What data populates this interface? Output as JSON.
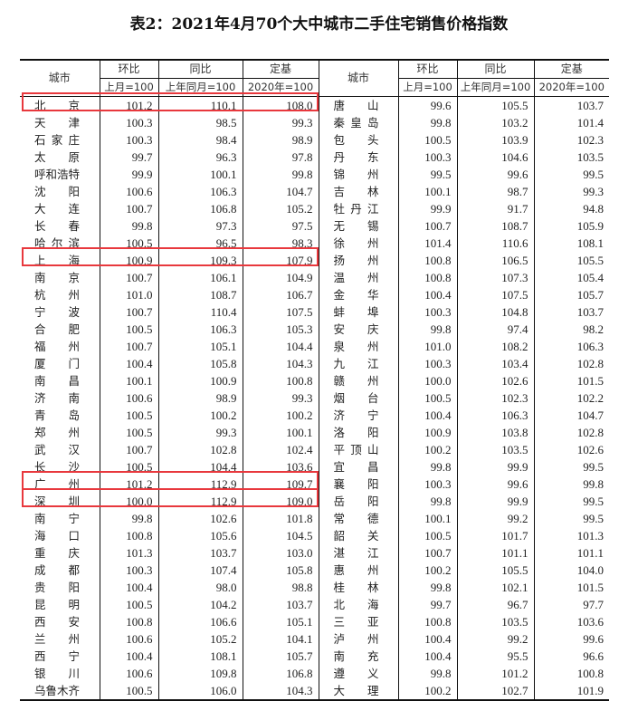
{
  "title": "表2：2021年4月70个大中城市二手住宅销售价格指数",
  "headers": {
    "city": "城市",
    "mom": "环比",
    "yoy": "同比",
    "base": "定基",
    "mom_sub": "上月=100",
    "yoy_sub": "上年同月=100",
    "base_sub": "2020年=100"
  },
  "highlight_color": "#e8383d",
  "left": [
    {
      "city": "北京",
      "mom": "101.2",
      "yoy": "110.1",
      "base": "108.0",
      "highlight": true
    },
    {
      "city": "天津",
      "mom": "100.3",
      "yoy": "98.5",
      "base": "99.3"
    },
    {
      "city": "石家庄",
      "mom": "100.3",
      "yoy": "98.4",
      "base": "98.9"
    },
    {
      "city": "太原",
      "mom": "99.7",
      "yoy": "96.3",
      "base": "97.8"
    },
    {
      "city": "呼和浩特",
      "mom": "99.9",
      "yoy": "100.1",
      "base": "99.8"
    },
    {
      "city": "沈阳",
      "mom": "100.6",
      "yoy": "106.3",
      "base": "104.7"
    },
    {
      "city": "大连",
      "mom": "100.7",
      "yoy": "106.8",
      "base": "105.2"
    },
    {
      "city": "长春",
      "mom": "99.8",
      "yoy": "97.3",
      "base": "97.5"
    },
    {
      "city": "哈尔滨",
      "mom": "100.5",
      "yoy": "96.5",
      "base": "98.3"
    },
    {
      "city": "上海",
      "mom": "100.9",
      "yoy": "109.3",
      "base": "107.9",
      "highlight": true
    },
    {
      "city": "南京",
      "mom": "100.7",
      "yoy": "106.1",
      "base": "104.9"
    },
    {
      "city": "杭州",
      "mom": "101.0",
      "yoy": "108.7",
      "base": "106.7"
    },
    {
      "city": "宁波",
      "mom": "100.7",
      "yoy": "110.4",
      "base": "107.5"
    },
    {
      "city": "合肥",
      "mom": "100.5",
      "yoy": "106.3",
      "base": "105.3"
    },
    {
      "city": "福州",
      "mom": "100.7",
      "yoy": "105.1",
      "base": "104.4"
    },
    {
      "city": "厦门",
      "mom": "100.4",
      "yoy": "105.8",
      "base": "104.3"
    },
    {
      "city": "南昌",
      "mom": "100.1",
      "yoy": "100.9",
      "base": "100.8"
    },
    {
      "city": "济南",
      "mom": "100.6",
      "yoy": "98.9",
      "base": "99.3"
    },
    {
      "city": "青岛",
      "mom": "100.5",
      "yoy": "100.2",
      "base": "100.2"
    },
    {
      "city": "郑州",
      "mom": "100.5",
      "yoy": "99.3",
      "base": "100.1"
    },
    {
      "city": "武汉",
      "mom": "100.7",
      "yoy": "102.8",
      "base": "102.4"
    },
    {
      "city": "长沙",
      "mom": "100.5",
      "yoy": "104.4",
      "base": "103.6"
    },
    {
      "city": "广州",
      "mom": "101.2",
      "yoy": "112.9",
      "base": "109.7",
      "highlight": true
    },
    {
      "city": "深圳",
      "mom": "100.0",
      "yoy": "112.9",
      "base": "109.0",
      "highlight": true
    },
    {
      "city": "南宁",
      "mom": "99.8",
      "yoy": "102.6",
      "base": "101.8"
    },
    {
      "city": "海口",
      "mom": "100.8",
      "yoy": "105.6",
      "base": "104.5"
    },
    {
      "city": "重庆",
      "mom": "101.3",
      "yoy": "103.7",
      "base": "103.0"
    },
    {
      "city": "成都",
      "mom": "100.3",
      "yoy": "107.4",
      "base": "105.8"
    },
    {
      "city": "贵阳",
      "mom": "100.4",
      "yoy": "98.0",
      "base": "98.8"
    },
    {
      "city": "昆明",
      "mom": "100.5",
      "yoy": "104.2",
      "base": "103.7"
    },
    {
      "city": "西安",
      "mom": "100.8",
      "yoy": "106.6",
      "base": "105.1"
    },
    {
      "city": "兰州",
      "mom": "100.6",
      "yoy": "105.2",
      "base": "104.1"
    },
    {
      "city": "西宁",
      "mom": "100.4",
      "yoy": "108.1",
      "base": "105.7"
    },
    {
      "city": "银川",
      "mom": "100.6",
      "yoy": "109.8",
      "base": "106.8"
    },
    {
      "city": "乌鲁木齐",
      "mom": "100.5",
      "yoy": "106.0",
      "base": "104.3"
    }
  ],
  "right": [
    {
      "city": "唐山",
      "mom": "99.6",
      "yoy": "105.5",
      "base": "103.7"
    },
    {
      "city": "秦皇岛",
      "mom": "99.8",
      "yoy": "103.2",
      "base": "101.4"
    },
    {
      "city": "包头",
      "mom": "100.5",
      "yoy": "103.9",
      "base": "102.3"
    },
    {
      "city": "丹东",
      "mom": "100.3",
      "yoy": "104.6",
      "base": "103.5"
    },
    {
      "city": "锦州",
      "mom": "99.5",
      "yoy": "99.6",
      "base": "99.5"
    },
    {
      "city": "吉林",
      "mom": "100.1",
      "yoy": "98.7",
      "base": "99.3"
    },
    {
      "city": "牡丹江",
      "mom": "99.9",
      "yoy": "91.7",
      "base": "94.8"
    },
    {
      "city": "无锡",
      "mom": "100.7",
      "yoy": "108.7",
      "base": "105.9"
    },
    {
      "city": "徐州",
      "mom": "101.4",
      "yoy": "110.6",
      "base": "108.1"
    },
    {
      "city": "扬州",
      "mom": "100.8",
      "yoy": "106.5",
      "base": "105.5"
    },
    {
      "city": "温州",
      "mom": "100.8",
      "yoy": "107.3",
      "base": "105.4"
    },
    {
      "city": "金华",
      "mom": "100.4",
      "yoy": "107.5",
      "base": "105.7"
    },
    {
      "city": "蚌埠",
      "mom": "100.3",
      "yoy": "104.8",
      "base": "103.7"
    },
    {
      "city": "安庆",
      "mom": "99.8",
      "yoy": "97.4",
      "base": "98.2"
    },
    {
      "city": "泉州",
      "mom": "101.0",
      "yoy": "108.2",
      "base": "106.3"
    },
    {
      "city": "九江",
      "mom": "100.3",
      "yoy": "103.4",
      "base": "102.8"
    },
    {
      "city": "赣州",
      "mom": "100.0",
      "yoy": "102.6",
      "base": "101.5"
    },
    {
      "city": "烟台",
      "mom": "100.5",
      "yoy": "102.3",
      "base": "102.2"
    },
    {
      "city": "济宁",
      "mom": "100.4",
      "yoy": "106.3",
      "base": "104.7"
    },
    {
      "city": "洛阳",
      "mom": "100.9",
      "yoy": "103.8",
      "base": "102.8"
    },
    {
      "city": "平顶山",
      "mom": "100.2",
      "yoy": "103.5",
      "base": "102.6"
    },
    {
      "city": "宜昌",
      "mom": "99.8",
      "yoy": "99.9",
      "base": "99.5"
    },
    {
      "city": "襄阳",
      "mom": "100.3",
      "yoy": "99.6",
      "base": "99.8"
    },
    {
      "city": "岳阳",
      "mom": "99.8",
      "yoy": "99.9",
      "base": "99.5"
    },
    {
      "city": "常德",
      "mom": "100.1",
      "yoy": "99.2",
      "base": "99.5"
    },
    {
      "city": "韶关",
      "mom": "100.5",
      "yoy": "101.7",
      "base": "101.3"
    },
    {
      "city": "湛江",
      "mom": "100.7",
      "yoy": "101.1",
      "base": "101.1"
    },
    {
      "city": "惠州",
      "mom": "100.2",
      "yoy": "105.5",
      "base": "104.0"
    },
    {
      "city": "桂林",
      "mom": "99.8",
      "yoy": "102.1",
      "base": "101.5"
    },
    {
      "city": "北海",
      "mom": "99.7",
      "yoy": "96.7",
      "base": "97.7"
    },
    {
      "city": "三亚",
      "mom": "100.8",
      "yoy": "103.5",
      "base": "103.6"
    },
    {
      "city": "泸州",
      "mom": "100.4",
      "yoy": "99.2",
      "base": "99.6"
    },
    {
      "city": "南充",
      "mom": "100.4",
      "yoy": "95.5",
      "base": "96.6"
    },
    {
      "city": "遵义",
      "mom": "99.8",
      "yoy": "101.2",
      "base": "100.8"
    },
    {
      "city": "大理",
      "mom": "100.2",
      "yoy": "102.7",
      "base": "101.9"
    }
  ]
}
